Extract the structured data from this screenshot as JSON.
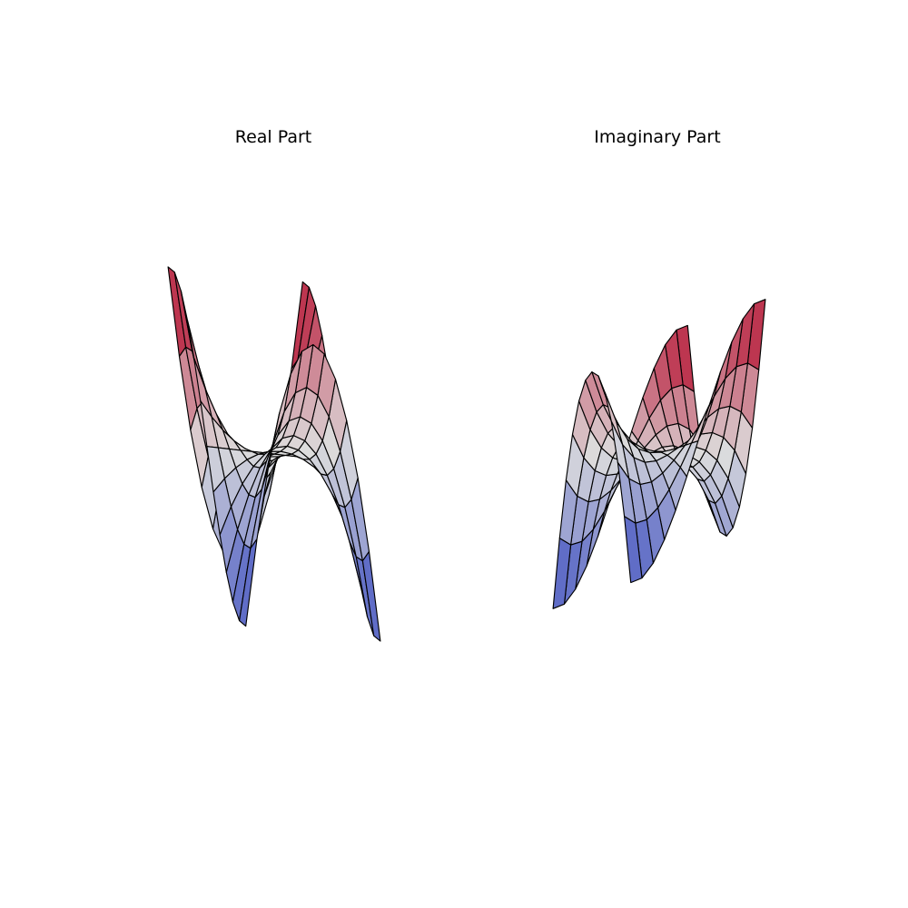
{
  "figure": {
    "background": "#ffffff"
  },
  "colormap": {
    "name": "coolwarm",
    "low": "#3b4cc0",
    "mid": "#dddddd",
    "high": "#b40426",
    "edge": "#000000"
  },
  "chart_data": [
    {
      "type": "surface3d",
      "title": "Real Part",
      "function": "Re(z^3)",
      "x_range": [
        -1.2,
        1.2
      ],
      "y_range": [
        -1.2,
        1.2
      ],
      "grid": false,
      "axes_visible": false,
      "xlabel": "",
      "ylabel": "",
      "zlabel": ""
    },
    {
      "type": "surface3d",
      "title": "Imaginary Part",
      "function": "Im(z^3)",
      "x_range": [
        -1.2,
        1.2
      ],
      "y_range": [
        -1.2,
        1.2
      ],
      "grid": false,
      "axes_visible": false,
      "xlabel": "",
      "ylabel": "",
      "zlabel": ""
    }
  ]
}
